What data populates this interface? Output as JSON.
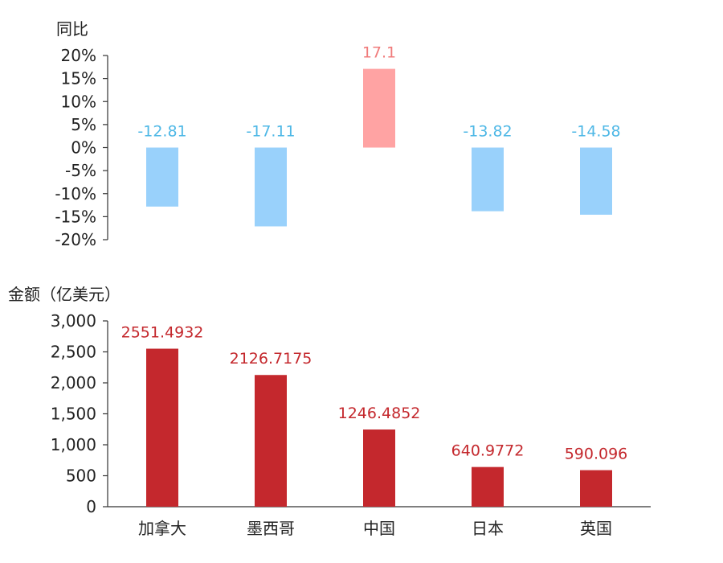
{
  "chart_data": [
    {
      "type": "bar",
      "ylabel": "同比",
      "categories": [
        "加拿大",
        "墨西哥",
        "中国",
        "日本",
        "英国"
      ],
      "values": [
        -12.81,
        -17.11,
        17.1,
        -13.82,
        -14.58
      ],
      "data_labels": [
        "-12.81",
        "-17.11",
        "17.1",
        "-13.82",
        "-14.58"
      ],
      "ylim": [
        -20,
        20
      ],
      "yticks": [
        20,
        15,
        10,
        5,
        0,
        -5,
        -10,
        -15,
        -20
      ],
      "ytick_labels": [
        "20%",
        "15%",
        "10%",
        "5%",
        "0%",
        "-5%",
        "-10%",
        "-15%",
        "-20%"
      ],
      "colors": {
        "positive": "#ffa3a3",
        "negative": "#99d1fb",
        "positive_label": "#f07b7b",
        "negative_label": "#4fb8e6"
      }
    },
    {
      "type": "bar",
      "ylabel": "金额（亿美元）",
      "categories": [
        "加拿大",
        "墨西哥",
        "中国",
        "日本",
        "英国"
      ],
      "values": [
        2551.4932,
        2126.7175,
        1246.4852,
        640.9772,
        590.096
      ],
      "data_labels": [
        "2551.4932",
        "2126.7175",
        "1246.4852",
        "640.9772",
        "590.096"
      ],
      "ylim": [
        0,
        3000
      ],
      "yticks": [
        3000,
        2500,
        2000,
        1500,
        1000,
        500,
        0
      ],
      "ytick_labels": [
        "3,000",
        "2,500",
        "2,000",
        "1,500",
        "1,000",
        "500",
        "0"
      ],
      "colors": {
        "bar": "#c4282d",
        "label": "#c4282d"
      }
    }
  ]
}
